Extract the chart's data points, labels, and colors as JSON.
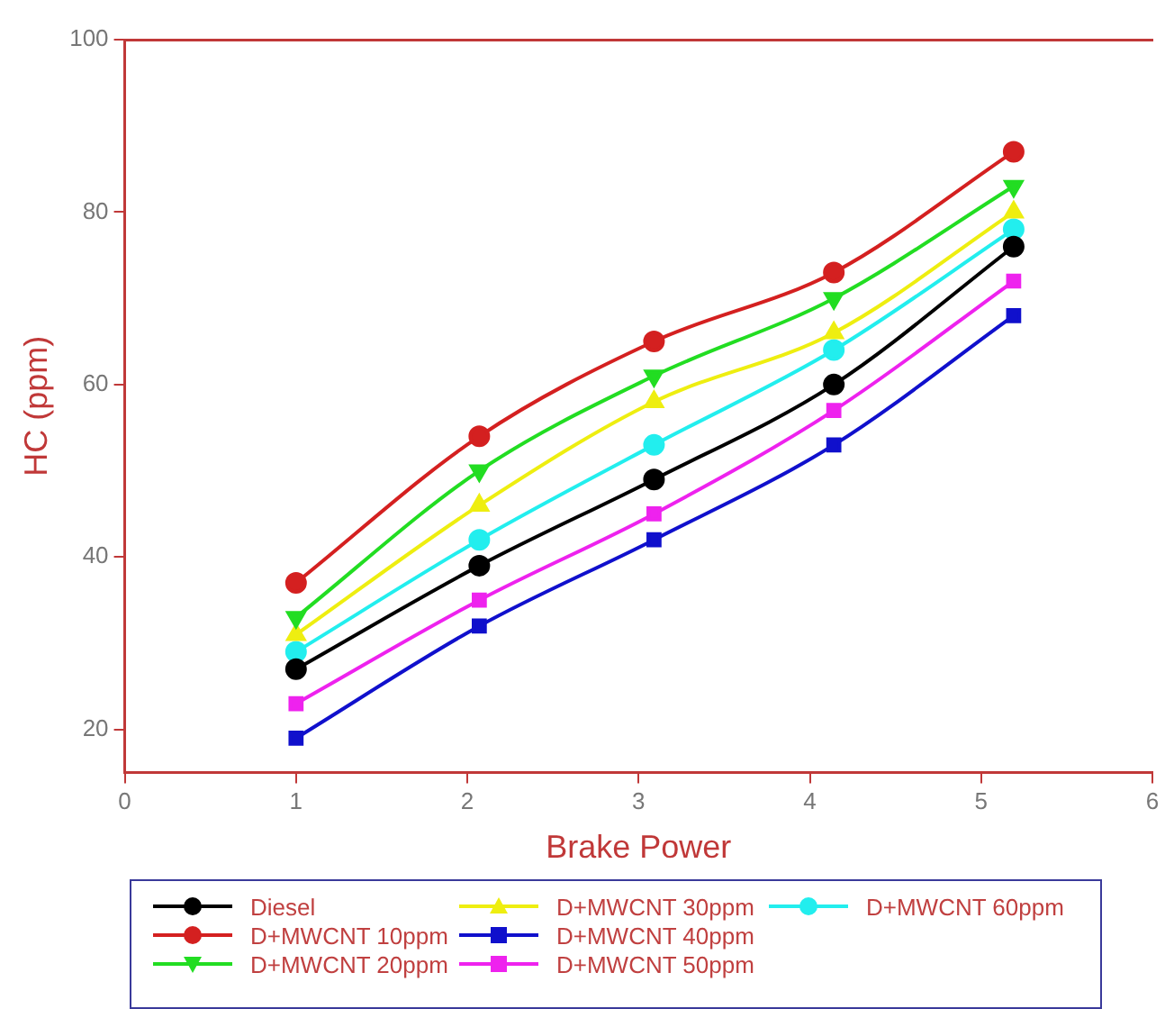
{
  "chart_data": {
    "type": "line",
    "xlabel": "Brake Power",
    "ylabel": "HC (ppm)",
    "xlim": [
      0,
      6
    ],
    "xticks": [
      0,
      1,
      2,
      3,
      4,
      5,
      6
    ],
    "ylim": [
      15,
      100
    ],
    "yticks": [
      20,
      40,
      60,
      80,
      100
    ],
    "grid": false,
    "legend": "bottom",
    "line_style": "solid",
    "x": [
      1,
      2.07,
      3.09,
      4.14,
      5.19
    ],
    "series": [
      {
        "name": "Diesel",
        "color": "#000000",
        "marker": "circle",
        "values": [
          27,
          39,
          49,
          60,
          76
        ]
      },
      {
        "name": "D+MWCNT 10ppm",
        "color": "#d42020",
        "marker": "circle",
        "values": [
          37,
          54,
          65,
          73,
          87
        ]
      },
      {
        "name": "D+MWCNT 20ppm",
        "color": "#22dd22",
        "marker": "triangle-down",
        "values": [
          33,
          50,
          61,
          70,
          83
        ]
      },
      {
        "name": "D+MWCNT 30ppm",
        "color": "#eeee10",
        "marker": "triangle",
        "values": [
          31,
          46,
          58,
          66,
          80
        ]
      },
      {
        "name": "D+MWCNT 40ppm",
        "color": "#1010cc",
        "marker": "square",
        "values": [
          19,
          32,
          42,
          53,
          68
        ]
      },
      {
        "name": "D+MWCNT 50ppm",
        "color": "#ee22ee",
        "marker": "square",
        "values": [
          23,
          35,
          45,
          57,
          72
        ]
      },
      {
        "name": "D+MWCNT 60ppm",
        "color": "#22eeee",
        "marker": "circle",
        "values": [
          29,
          42,
          53,
          64,
          78
        ]
      }
    ]
  }
}
